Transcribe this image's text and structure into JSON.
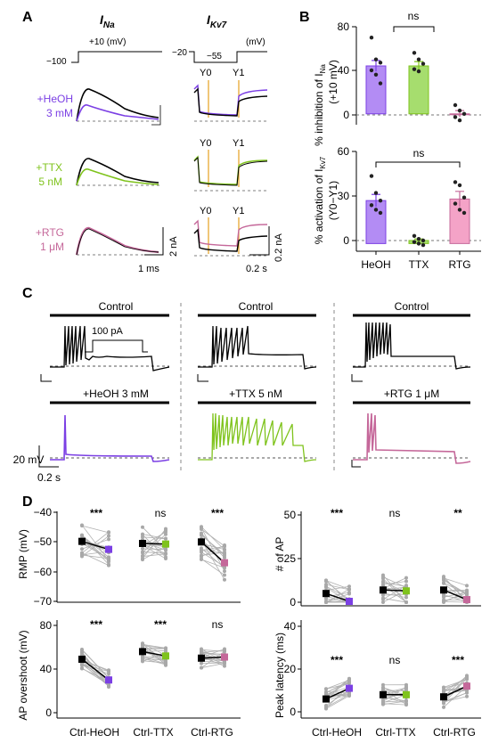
{
  "panel_labels": {
    "a": "A",
    "b": "B",
    "c": "C",
    "d": "D"
  },
  "colors": {
    "heoh": "#7b3fe4",
    "ttx": "#7fc31c",
    "rtg": "#c5689a",
    "heoh_bar": "#b38cf4",
    "ttx_bar": "#a6dd6e",
    "rtg_bar": "#f4a3c7",
    "black": "#000000",
    "grey": "#aaaaaa",
    "orange": "#e6a020"
  },
  "panel_a": {
    "title_na": "I",
    "title_na_sub": "Na",
    "title_kv": "I",
    "title_kv_sub": "Kv7",
    "na_protocol": {
      "top": "+10 (mV)",
      "bottom": "−100"
    },
    "kv_protocol": {
      "left": "−20",
      "mid": "−55",
      "right": "(mV)"
    },
    "y0": "Y0",
    "y1": "Y1",
    "rows": [
      {
        "drug": "+HeOH",
        "conc": "3 mM"
      },
      {
        "drug": "+TTX",
        "conc": "5 nM"
      },
      {
        "drug": "+RTG",
        "conc": "1 μM"
      }
    ],
    "scale_na_y": "2 nA",
    "scale_na_x": "1 ms",
    "scale_kv_y": "0.2 nA",
    "scale_kv_x": "0.2 s"
  },
  "panel_b": {
    "ns": "ns",
    "top_ylabel_1": "% inhibition of I",
    "top_ylabel_sub": "Na",
    "top_ylabel_2": "(+10 mV)",
    "bottom_ylabel_1": "% activation of I",
    "bottom_ylabel_sub": "Kv7",
    "bottom_ylabel_2": "(Y0−Y1)",
    "categories": [
      "HeOH",
      "TTX",
      "RTG"
    ],
    "top_ticks": [
      "0",
      "40",
      "80"
    ],
    "bottom_ticks": [
      "0",
      "30",
      "60"
    ]
  },
  "panel_c": {
    "control": "Control",
    "step": "100 pA",
    "drugs": [
      "+HeOH 3 mM",
      "+TTX 5 nM",
      "+RTG 1 μM"
    ],
    "scale_y": "20 mV",
    "scale_x": "0.2 s"
  },
  "panel_d": {
    "categories": [
      "Ctrl-HeOH",
      "Ctrl-TTX",
      "Ctrl-RTG"
    ],
    "rmp": {
      "ylabel": "RMP (mV)",
      "ticks": [
        "−40",
        "−50",
        "−60",
        "−70"
      ],
      "sig": [
        "***",
        "ns",
        "***"
      ]
    },
    "ap_num": {
      "ylabel": "# of AP",
      "ticks": [
        "50",
        "25",
        "0"
      ],
      "sig": [
        "***",
        "ns",
        "**"
      ]
    },
    "overshoot": {
      "ylabel": "AP overshoot (mV)",
      "ticks": [
        "80",
        "40",
        "0"
      ],
      "sig": [
        "***",
        "***",
        "ns"
      ]
    },
    "latency": {
      "ylabel": "Peak latency (ms)",
      "ticks": [
        "40",
        "20",
        "0"
      ],
      "sig": [
        "***",
        "ns",
        "***"
      ]
    }
  },
  "chart_data": [
    {
      "type": "bar",
      "title": "",
      "ylabel": "% inhibition of INa (+10 mV)",
      "categories": [
        "HeOH",
        "TTX",
        "RTG"
      ],
      "values": [
        44,
        44,
        0
      ],
      "errors": [
        5,
        4,
        3
      ],
      "points": [
        [
          70,
          50,
          47,
          40,
          36,
          28
        ],
        [
          56,
          50,
          46,
          41,
          39
        ],
        [
          8,
          3,
          0,
          -3,
          -6
        ]
      ],
      "ylim": [
        -10,
        80
      ],
      "annotations": [
        "ns"
      ]
    },
    {
      "type": "bar",
      "title": "",
      "ylabel": "% activation of IKv7 (Y0−Y1)",
      "categories": [
        "HeOH",
        "TTX",
        "RTG"
      ],
      "values": [
        28,
        2,
        29
      ],
      "errors": [
        4,
        1,
        5
      ],
      "points": [
        [
          44,
          33,
          28,
          25,
          22,
          20
        ],
        [
          5,
          3,
          2,
          1,
          0,
          -1
        ],
        [
          40,
          38,
          30,
          26,
          22,
          20
        ]
      ],
      "ylim": [
        -5,
        60
      ],
      "annotations": [
        "ns"
      ]
    },
    {
      "type": "line",
      "title": "",
      "ylabel": "RMP (mV)",
      "categories": [
        "Ctrl-HeOH",
        "Ctrl-TTX",
        "Ctrl-RTG"
      ],
      "series": [
        {
          "name": "Control",
          "values": [
            -49.8,
            -50.5,
            -50.0
          ]
        },
        {
          "name": "Drug",
          "values": [
            -52.5,
            -50.7,
            -57.0
          ]
        }
      ],
      "ylim": [
        -70,
        -40
      ]
    },
    {
      "type": "line",
      "title": "",
      "ylabel": "# of AP",
      "categories": [
        "Ctrl-HeOH",
        "Ctrl-TTX",
        "Ctrl-RTG"
      ],
      "series": [
        {
          "name": "Control",
          "values": [
            5,
            7,
            7
          ]
        },
        {
          "name": "Drug",
          "values": [
            0.5,
            6.5,
            1.5
          ]
        }
      ],
      "ylim": [
        0,
        50
      ]
    },
    {
      "type": "line",
      "title": "",
      "ylabel": "AP overshoot (mV)",
      "categories": [
        "Ctrl-HeOH",
        "Ctrl-TTX",
        "Ctrl-RTG"
      ],
      "series": [
        {
          "name": "Control",
          "values": [
            49,
            56,
            50
          ]
        },
        {
          "name": "Drug",
          "values": [
            30,
            52,
            51
          ]
        }
      ],
      "ylim": [
        0,
        80
      ]
    },
    {
      "type": "line",
      "title": "",
      "ylabel": "Peak latency (ms)",
      "categories": [
        "Ctrl-HeOH",
        "Ctrl-TTX",
        "Ctrl-RTG"
      ],
      "series": [
        {
          "name": "Control",
          "values": [
            6,
            8,
            7
          ]
        },
        {
          "name": "Drug",
          "values": [
            11,
            8,
            12
          ]
        }
      ],
      "ylim": [
        0,
        40
      ]
    }
  ]
}
